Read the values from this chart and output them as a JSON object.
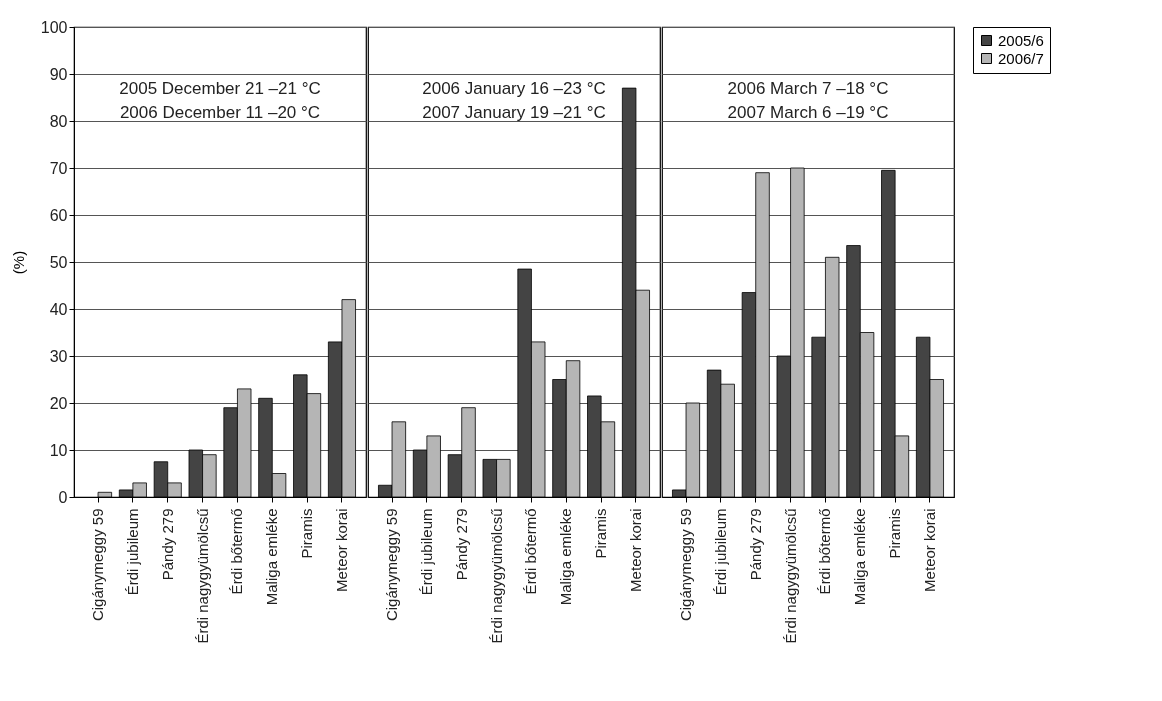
{
  "chart_data": [
    {
      "type": "bar",
      "ylabel": "(%)",
      "categories": [
        "Cigánymeggy 59",
        "Érdi jubileum",
        "Pándy 279",
        "Érdi nagygyümölcsű",
        "Érdi bőtermő",
        "Maliga emléke",
        "Piramis",
        "Meteor korai"
      ],
      "series": [
        {
          "name": "2005/6",
          "color": "#444444",
          "values": [
            null,
            1.5,
            7.5,
            10,
            19,
            21,
            26,
            33
          ]
        },
        {
          "name": "2006/7",
          "color": "#b5b5b5",
          "values": [
            1,
            3,
            3,
            9,
            23,
            5,
            22,
            42
          ]
        }
      ],
      "ylim": [
        0,
        100
      ],
      "yticks": [
        0,
        10,
        20,
        30,
        40,
        50,
        60,
        70,
        80,
        90,
        100
      ],
      "grid": "y",
      "legend": "top right",
      "annotations": [
        "2005 December 21 –21 °C",
        "2006 December 11 –20 °C"
      ]
    },
    {
      "type": "bar",
      "categories": [
        "Cigánymeggy 59",
        "Érdi jubileum",
        "Pándy 279",
        "Érdi nagygyümölcsű",
        "Érdi bőtermő",
        "Maliga emléke",
        "Piramis",
        "Meteor korai"
      ],
      "series": [
        {
          "name": "2005/6",
          "color": "#444444",
          "values": [
            2.5,
            10,
            9,
            8,
            48.5,
            25,
            21.5,
            87
          ]
        },
        {
          "name": "2006/7",
          "color": "#b5b5b5",
          "values": [
            16,
            13,
            19,
            8,
            33,
            29,
            16,
            44
          ]
        }
      ],
      "ylim": [
        0,
        100
      ],
      "yticks": [
        0,
        10,
        20,
        30,
        40,
        50,
        60,
        70,
        80,
        90,
        100
      ],
      "grid": "y",
      "legend": "top right",
      "tick_labels": "x",
      "annotations": [
        "2006 January 16 –23 °C",
        "2007 January 19 –21 °C"
      ]
    },
    {
      "type": "bar",
      "categories": [
        "Cigánymeggy 59",
        "Érdi jubileum",
        "Pándy 279",
        "Érdi nagygyümölcsű",
        "Érdi bőtermő",
        "Maliga emléke",
        "Piramis",
        "Meteor korai"
      ],
      "series": [
        {
          "name": "2005/6",
          "color": "#444444",
          "values": [
            1.5,
            27,
            43.5,
            30,
            34,
            53.5,
            69.5,
            34
          ]
        },
        {
          "name": "2006/7",
          "color": "#b5b5b5",
          "values": [
            20,
            24,
            69,
            70,
            51,
            35,
            13,
            25
          ]
        }
      ],
      "ylim": [
        0,
        100
      ],
      "yticks": [
        0,
        10,
        20,
        30,
        40,
        50,
        60,
        70,
        80,
        90,
        100
      ],
      "grid": "y",
      "legend": "top right",
      "tick_labels": "x",
      "annotations": [
        "2006 March 7  –18 °C",
        "2007 March 6  –19 °C"
      ]
    }
  ]
}
